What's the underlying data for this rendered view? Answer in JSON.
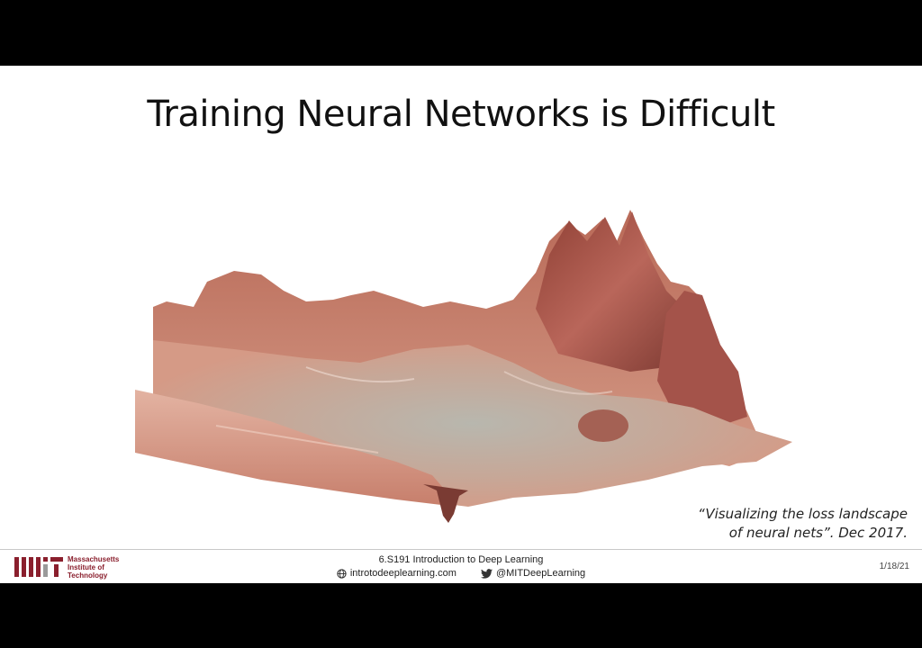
{
  "slide": {
    "title": "Training Neural Networks is Difficult",
    "citation": {
      "line1": "“Visualizing the loss landscape",
      "line2": "of neural nets”. Dec 2017."
    }
  },
  "footer": {
    "institution": {
      "line1": "Massachusetts",
      "line2": "Institute of",
      "line3": "Technology"
    },
    "course": "6.S191 Introduction to Deep Learning",
    "website": "introtodeeplearning.com",
    "twitter": "@MITDeepLearning",
    "date": "1/18/21"
  },
  "colors": {
    "accent_red": "#8a1f2d",
    "landscape_peak": "#9a4a3c",
    "landscape_valley": "#b9b2a8"
  },
  "icons": {
    "globe": "globe-icon",
    "twitter": "twitter-bird-icon"
  }
}
